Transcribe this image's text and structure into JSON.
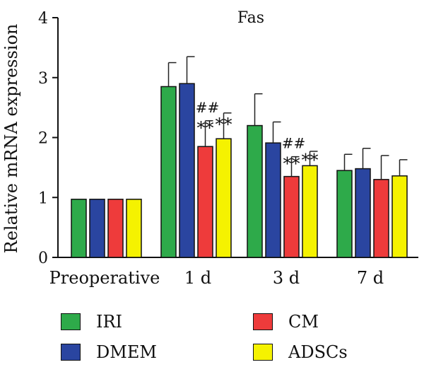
{
  "chart_data": {
    "type": "bar",
    "title": "Fas",
    "ylabel": "Relative mRNA expression",
    "xlabel": "",
    "ylim": [
      0,
      4
    ],
    "yticks": [
      "0",
      "1",
      "2",
      "3",
      "4"
    ],
    "categories": [
      "Preoperative",
      "1 d",
      "3 d",
      "7 d"
    ],
    "series": [
      {
        "name": "IRI",
        "color": "#2eaa4a",
        "values": [
          0.97,
          2.85,
          2.2,
          1.45
        ],
        "errors": [
          0,
          0.4,
          0.53,
          0.27
        ]
      },
      {
        "name": "DMEM",
        "color": "#2a45a0",
        "values": [
          0.97,
          2.9,
          1.91,
          1.48
        ],
        "errors": [
          0,
          0.45,
          0.35,
          0.34
        ]
      },
      {
        "name": "CM",
        "color": "#ee3b3b",
        "values": [
          0.97,
          1.85,
          1.35,
          1.3
        ],
        "errors": [
          0,
          0.43,
          0.33,
          0.4
        ]
      },
      {
        "name": "ADSCs",
        "color": "#f5f200",
        "values": [
          0.97,
          1.98,
          1.53,
          1.36
        ],
        "errors": [
          0,
          0.43,
          0.24,
          0.27
        ]
      }
    ],
    "annotations": [
      {
        "category": "1 d",
        "hash": "##",
        "stars": [
          "**",
          "**"
        ]
      },
      {
        "category": "3 d",
        "hash": "##",
        "stars": [
          "**",
          "**"
        ]
      }
    ],
    "legend": {
      "position": "bottom",
      "items": [
        "IRI",
        "CM",
        "DMEM",
        "ADSCs"
      ]
    },
    "grid": false
  }
}
